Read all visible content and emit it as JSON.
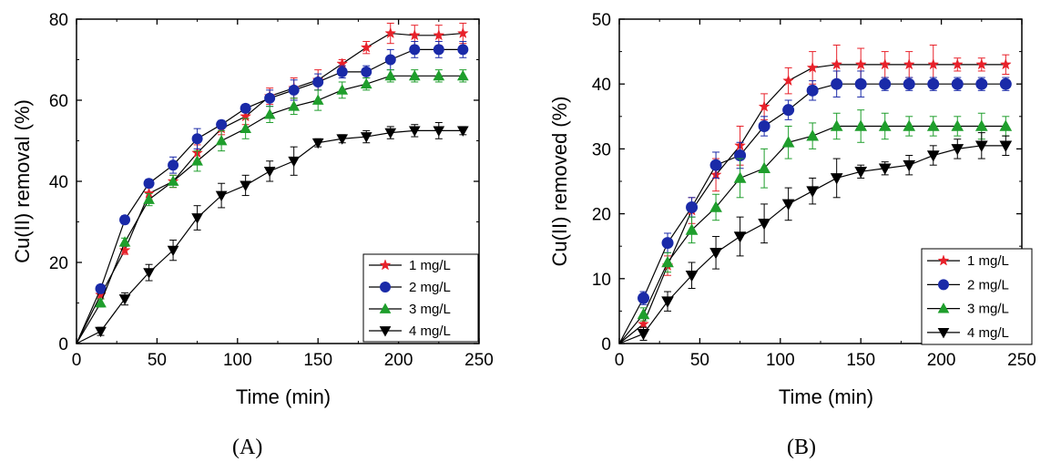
{
  "chart_data": [
    {
      "type": "line",
      "panel_label": "(A)",
      "xlabel": "Time (min)",
      "ylabel": "Cu(II) removal (%)",
      "xlim": [
        0,
        250
      ],
      "ylim": [
        0,
        80
      ],
      "xticks": [
        0,
        50,
        100,
        150,
        200,
        250
      ],
      "yticks": [
        0,
        20,
        40,
        60,
        80
      ],
      "legend_position": "bottom-right",
      "series": [
        {
          "name": "1 mg/L",
          "color": "#e8212a",
          "marker": "star",
          "x": [
            0,
            15,
            30,
            45,
            60,
            75,
            90,
            105,
            120,
            135,
            150,
            165,
            180,
            195,
            210,
            225,
            240
          ],
          "y": [
            0,
            12,
            23,
            37,
            40,
            47,
            53,
            56,
            61,
            63,
            65,
            69,
            73,
            76.5,
            76,
            76,
            76.5
          ],
          "err": [
            0,
            1,
            1,
            1.5,
            1.5,
            2,
            1.5,
            2,
            2,
            2.5,
            2.5,
            1,
            1.5,
            2.5,
            2.5,
            2.5,
            2.5
          ]
        },
        {
          "name": "2 mg/L",
          "color": "#1a2aa8",
          "marker": "circle",
          "x": [
            0,
            15,
            30,
            45,
            60,
            75,
            90,
            105,
            120,
            135,
            150,
            165,
            180,
            195,
            210,
            225,
            240
          ],
          "y": [
            0,
            13.5,
            30.5,
            39.5,
            44,
            50.5,
            54,
            58,
            60.5,
            62.5,
            64.5,
            67,
            67,
            70,
            72.5,
            72.5,
            72.5
          ],
          "err": [
            0,
            1,
            1,
            1,
            2,
            2.5,
            1,
            1,
            2,
            2.5,
            2,
            1.5,
            1.5,
            2.5,
            2,
            2,
            2
          ]
        },
        {
          "name": "3 mg/L",
          "color": "#1f9e2c",
          "marker": "triangle-up",
          "x": [
            0,
            15,
            30,
            45,
            60,
            75,
            90,
            105,
            120,
            135,
            150,
            165,
            180,
            195,
            210,
            225,
            240
          ],
          "y": [
            0,
            10,
            25,
            35.5,
            40,
            45,
            50,
            53,
            56.5,
            58.5,
            60,
            62.5,
            64,
            66,
            66,
            66,
            66
          ],
          "err": [
            0,
            1,
            1,
            1.5,
            1.5,
            2.5,
            2.5,
            2.5,
            2,
            2,
            2.5,
            2,
            1.5,
            1.5,
            1.5,
            1.5,
            1.5
          ]
        },
        {
          "name": "4 mg/L",
          "color": "#000000",
          "marker": "triangle-down",
          "x": [
            0,
            15,
            30,
            45,
            60,
            75,
            90,
            105,
            120,
            135,
            150,
            165,
            180,
            195,
            210,
            225,
            240
          ],
          "y": [
            0,
            3,
            11,
            17.5,
            23,
            31,
            36.5,
            39,
            42.5,
            45,
            49.5,
            50.5,
            51,
            52,
            52.5,
            52.5,
            52.5
          ],
          "err": [
            0,
            1,
            1.5,
            2,
            2.5,
            3,
            3,
            2.5,
            2.5,
            3.5,
            1,
            1,
            1.5,
            1.5,
            1.5,
            2,
            1
          ]
        }
      ]
    },
    {
      "type": "line",
      "panel_label": "(B)",
      "xlabel": "Time (min)",
      "ylabel": "Cu(II) removed (%)",
      "xlim": [
        0,
        250
      ],
      "ylim": [
        0,
        50
      ],
      "xticks": [
        0,
        50,
        100,
        150,
        200,
        250
      ],
      "yticks": [
        0,
        10,
        20,
        30,
        40,
        50
      ],
      "legend_position": "bottom-right",
      "series": [
        {
          "name": "1 mg/L",
          "color": "#e8212a",
          "marker": "star",
          "x": [
            0,
            15,
            30,
            45,
            60,
            75,
            90,
            105,
            120,
            135,
            150,
            165,
            180,
            195,
            210,
            225,
            240
          ],
          "y": [
            0,
            3,
            12,
            20.5,
            26,
            30.5,
            36.5,
            40.5,
            42.5,
            43,
            43,
            43,
            43,
            43,
            43,
            43,
            43
          ],
          "err": [
            0,
            1,
            1.5,
            2,
            2.5,
            3,
            2,
            2,
            2.5,
            3,
            2.5,
            2,
            2,
            3,
            1,
            1,
            1.5
          ]
        },
        {
          "name": "2 mg/L",
          "color": "#1a2aa8",
          "marker": "circle",
          "x": [
            0,
            15,
            30,
            45,
            60,
            75,
            90,
            105,
            120,
            135,
            150,
            165,
            180,
            195,
            210,
            225,
            240
          ],
          "y": [
            0,
            7,
            15.5,
            21,
            27.5,
            29,
            33.5,
            36,
            39,
            40,
            40,
            40,
            40,
            40,
            40,
            40,
            40
          ],
          "err": [
            0,
            1,
            1.5,
            1.5,
            2,
            2,
            1.5,
            1.5,
            1.5,
            2,
            2,
            1,
            1,
            1,
            1,
            1,
            1
          ]
        },
        {
          "name": "3 mg/L",
          "color": "#1f9e2c",
          "marker": "triangle-up",
          "x": [
            0,
            15,
            30,
            45,
            60,
            75,
            90,
            105,
            120,
            135,
            150,
            165,
            180,
            195,
            210,
            225,
            240
          ],
          "y": [
            0,
            4.5,
            12.5,
            17.5,
            21,
            25.5,
            27,
            31,
            32,
            33.5,
            33.5,
            33.5,
            33.5,
            33.5,
            33.5,
            33.5,
            33.5
          ],
          "err": [
            0,
            1,
            1.5,
            2,
            2,
            3,
            3,
            2.5,
            2,
            2,
            2.5,
            2,
            1.5,
            1.5,
            1.5,
            2,
            1.5
          ]
        },
        {
          "name": "4 mg/L",
          "color": "#000000",
          "marker": "triangle-down",
          "x": [
            0,
            15,
            30,
            45,
            60,
            75,
            90,
            105,
            120,
            135,
            150,
            165,
            180,
            195,
            210,
            225,
            240
          ],
          "y": [
            0,
            1.5,
            6.5,
            10.5,
            14,
            16.5,
            18.5,
            21.5,
            23.5,
            25.5,
            26.5,
            27,
            27.5,
            29,
            30,
            30.5,
            30.5
          ],
          "err": [
            0,
            1,
            1.5,
            2,
            2.5,
            3,
            3,
            2.5,
            2,
            3,
            1,
            1,
            1.5,
            1.5,
            1.5,
            2,
            1.5
          ]
        }
      ]
    }
  ]
}
